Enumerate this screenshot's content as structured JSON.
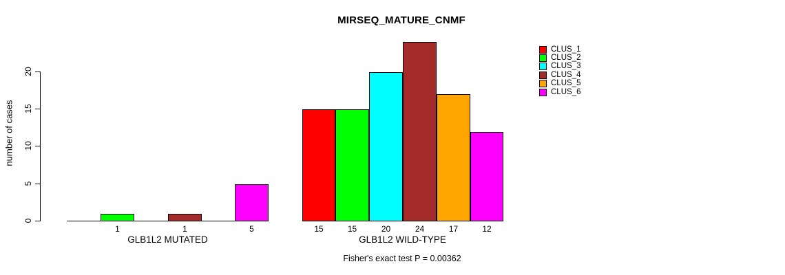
{
  "chart_data": {
    "type": "bar",
    "title": "MIRSEQ_MATURE_CNMF",
    "xlabel": "",
    "ylabel": "number of cases",
    "annotation": "Fisher's exact test P = 0.00362",
    "categories": [
      "GLB1L2 MUTATED",
      "GLB1L2 WILD-TYPE"
    ],
    "series": [
      {
        "name": "CLUS_1",
        "color": "#FF0000",
        "values": [
          0,
          15
        ]
      },
      {
        "name": "CLUS_2",
        "color": "#00FF00",
        "values": [
          1,
          15
        ]
      },
      {
        "name": "CLUS_3",
        "color": "#00FFFF",
        "values": [
          0,
          20
        ]
      },
      {
        "name": "CLUS_4",
        "color": "#A52A2A",
        "values": [
          1,
          24
        ]
      },
      {
        "name": "CLUS_5",
        "color": "#FFA500",
        "values": [
          0,
          17
        ]
      },
      {
        "name": "CLUS_6",
        "color": "#FF00FF",
        "values": [
          5,
          12
        ]
      }
    ],
    "yticks": [
      0,
      5,
      10,
      15,
      20
    ],
    "ylim": [
      0,
      24
    ],
    "grid": false,
    "legend_position": "top-right",
    "bar_value_labels_shown": true,
    "zero_value_labels_hidden": true,
    "axis_color": "#000000",
    "background_color": "#FFFFFF"
  }
}
